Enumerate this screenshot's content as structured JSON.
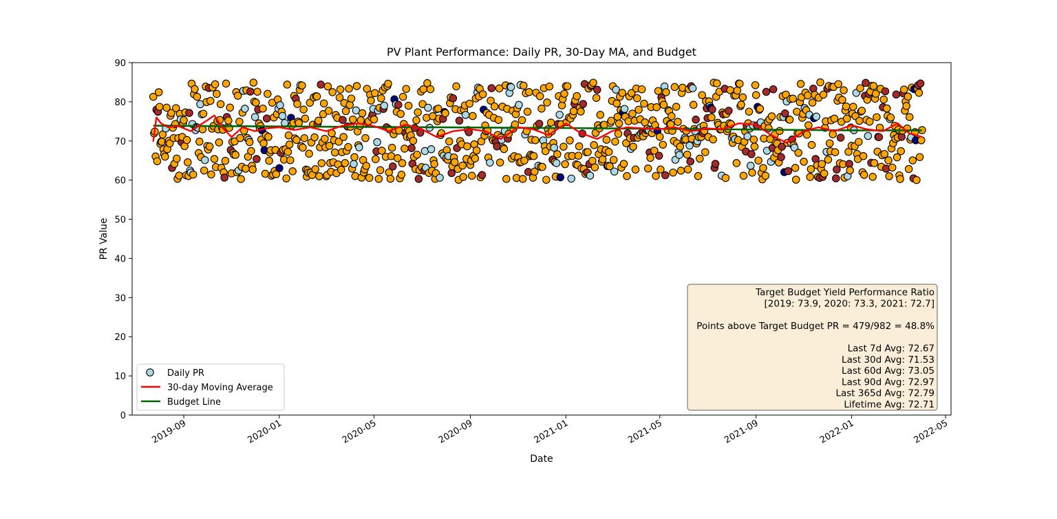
{
  "chart_data": {
    "type": "scatter",
    "title": "PV Plant Performance: Daily PR, 30-Day MA, and Budget",
    "xlabel": "Date",
    "ylabel": "PR Value",
    "xlim": [
      "2019-06-27",
      "2022-05-08"
    ],
    "ylim": [
      0,
      90
    ],
    "yticks": [
      0,
      10,
      20,
      30,
      40,
      50,
      60,
      70,
      80,
      90
    ],
    "xticks": [
      "2019-09",
      "2020-01",
      "2020-05",
      "2020-09",
      "2021-01",
      "2021-05",
      "2021-09",
      "2022-01",
      "2022-05"
    ],
    "x_start": "2019-07-24",
    "x_end": "2022-04-01",
    "point_count": 982,
    "pr_range": [
      60,
      85
    ],
    "legend_position": "lower-left",
    "grid": false,
    "legend": [
      {
        "label": "Daily PR",
        "marker": "circle",
        "color": "#add8e6"
      },
      {
        "label": "30-day Moving Average",
        "marker": "line",
        "color": "#ff0000"
      },
      {
        "label": "Budget Line",
        "marker": "line",
        "color": "#006400"
      }
    ],
    "point_colors": {
      "lightblue": "#add8e6",
      "orange": "#ffa500",
      "brown": "#a52a2a",
      "navy": "#000080"
    },
    "series": [
      {
        "name": "Budget Line",
        "color": "#006400",
        "x": [
          "2019-07-24",
          "2020-01-01",
          "2021-01-01",
          "2022-01-01",
          "2022-04-01"
        ],
        "values": [
          73.9,
          73.7,
          73.3,
          72.7,
          72.7
        ]
      },
      {
        "name": "30-day Moving Average",
        "color": "#ff0000",
        "x": [
          "2019-07-24",
          "2019-07-28",
          "2019-08-03",
          "2019-08-12",
          "2019-08-25",
          "2019-09-10",
          "2019-09-25",
          "2019-10-10",
          "2019-10-20",
          "2019-11-01",
          "2019-11-15",
          "2019-12-01",
          "2019-12-15",
          "2020-01-01",
          "2020-01-20",
          "2020-02-10",
          "2020-03-01",
          "2020-03-20",
          "2020-04-10",
          "2020-05-01",
          "2020-05-20",
          "2020-06-10",
          "2020-07-01",
          "2020-07-20",
          "2020-08-10",
          "2020-09-01",
          "2020-09-20",
          "2020-10-10",
          "2020-11-01",
          "2020-11-20",
          "2020-12-10",
          "2021-01-01",
          "2021-01-20",
          "2021-02-10",
          "2021-03-01",
          "2021-03-20",
          "2021-04-10",
          "2021-05-01",
          "2021-05-20",
          "2021-06-10",
          "2021-07-01",
          "2021-07-20",
          "2021-08-10",
          "2021-09-01",
          "2021-09-20",
          "2021-10-10",
          "2021-11-01",
          "2021-11-20",
          "2021-12-10",
          "2022-01-01",
          "2022-01-20",
          "2022-02-10",
          "2022-03-01",
          "2022-03-15",
          "2022-04-01"
        ],
        "values": [
          69.8,
          76.0,
          74.5,
          73.5,
          73.8,
          72.5,
          74.5,
          76.5,
          73.5,
          71.0,
          73.5,
          72.5,
          73.2,
          73.5,
          72.8,
          73.5,
          72.5,
          73.8,
          74.5,
          73.8,
          72.5,
          74.2,
          73.0,
          71.0,
          72.5,
          73.0,
          72.5,
          70.5,
          73.5,
          73.0,
          71.5,
          74.5,
          72.0,
          70.5,
          72.5,
          73.5,
          73.2,
          73.0,
          73.5,
          72.5,
          73.2,
          73.0,
          74.5,
          74.2,
          71.5,
          69.5,
          72.5,
          73.5,
          72.5,
          74.0,
          73.0,
          72.5,
          74.5,
          72.0,
          71.0
        ]
      }
    ],
    "stats_box": {
      "lines": [
        "Target Budget Yield Performance Ratio",
        "[2019: 73.9, 2020: 73.3, 2021: 72.7]",
        "",
        "Points above Target Budget PR = 479/982 = 48.8%",
        "",
        "Last 7d Avg: 72.67",
        "Last 30d Avg: 71.53",
        "Last 60d Avg: 73.05",
        "Last 90d Avg: 72.97",
        "Last 365d Avg: 72.79",
        "Lifetime Avg: 72.71"
      ]
    }
  }
}
